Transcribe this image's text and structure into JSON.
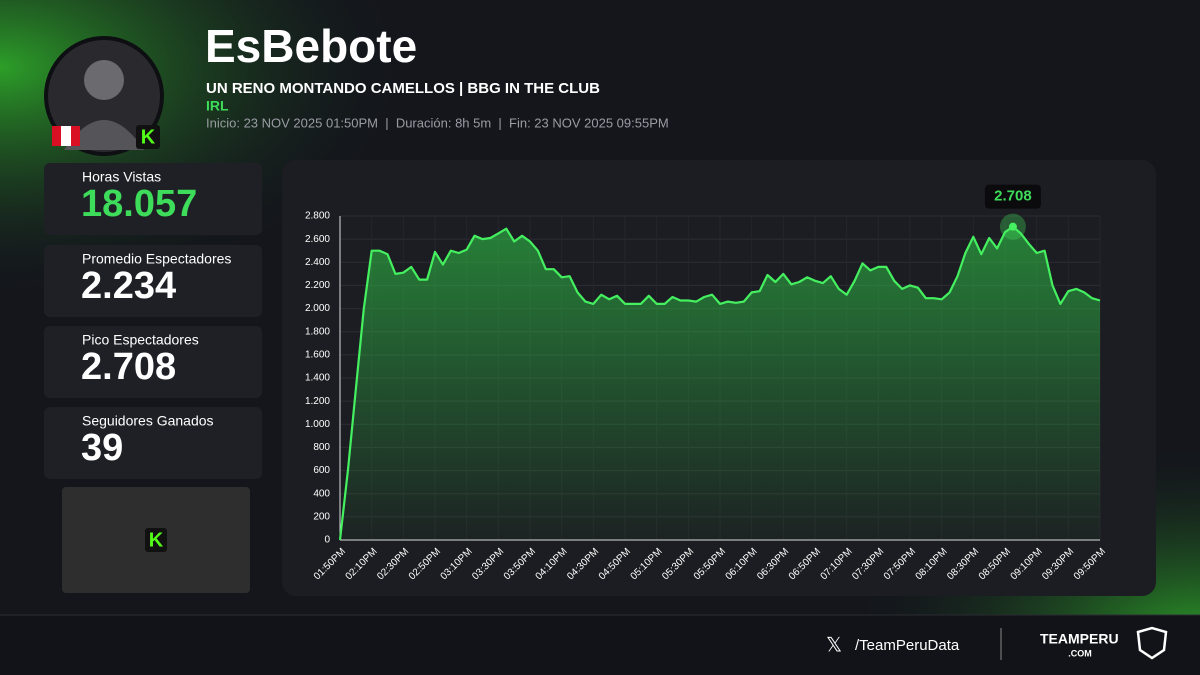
{
  "header": {
    "name": "EsBebote",
    "stream_title": "UN RENO MONTANDO CAMELLOS | BBG IN THE CLUB",
    "category": "IRL",
    "info": "Inicio: 23 NOV 2025 01:50PM  |  Duración: 8h 5m  |  Fin: 23 NOV 2025 09:55PM"
  },
  "stats": [
    {
      "label": "Horas Vistas",
      "value": "18.057"
    },
    {
      "label": "Promedio Espectadores",
      "value": "2.234"
    },
    {
      "label": "Pico Espectadores",
      "value": "2.708"
    },
    {
      "label": "Seguidores Ganados",
      "value": "39"
    }
  ],
  "footer": {
    "handle": "/TeamPeruData",
    "brand": "TEAMPERU",
    "brand_sub": ".COM"
  },
  "chart_data": {
    "type": "line",
    "color": "#45f060",
    "grid": true,
    "categories": [
      "01:50PM",
      null,
      null,
      null,
      "02:10PM",
      null,
      null,
      null,
      "02:30PM",
      null,
      null,
      null,
      "02:50PM",
      null,
      null,
      null,
      "03:10PM",
      null,
      null,
      null,
      "03:30PM",
      null,
      null,
      null,
      "03:50PM",
      null,
      null,
      null,
      "04:10PM",
      null,
      null,
      null,
      "04:30PM",
      null,
      null,
      null,
      "04:50PM",
      null,
      null,
      null,
      "05:10PM",
      null,
      null,
      null,
      "05:30PM",
      null,
      null,
      null,
      "05:50PM",
      null,
      null,
      null,
      "06:10PM",
      null,
      null,
      null,
      "06:30PM",
      null,
      null,
      null,
      "06:50PM",
      null,
      null,
      null,
      "07:10PM",
      null,
      null,
      null,
      "07:30PM",
      null,
      null,
      null,
      "07:50PM",
      null,
      null,
      null,
      "08:10PM",
      null,
      null,
      null,
      "08:30PM",
      null,
      null,
      null,
      "08:50PM",
      null,
      null,
      null,
      "09:10PM",
      null,
      null,
      null,
      "09:30PM",
      null,
      null,
      null,
      "09:50PM"
    ],
    "values": [
      0,
      600,
      1300,
      2000,
      2500,
      2500,
      2470,
      2300,
      2310,
      2360,
      2250,
      2250,
      2490,
      2380,
      2500,
      2480,
      2510,
      2630,
      2600,
      2610,
      2650,
      2690,
      2580,
      2630,
      2580,
      2500,
      2340,
      2340,
      2270,
      2280,
      2140,
      2060,
      2040,
      2120,
      2080,
      2110,
      2040,
      2040,
      2040,
      2110,
      2040,
      2040,
      2100,
      2070,
      2070,
      2060,
      2100,
      2120,
      2040,
      2060,
      2050,
      2060,
      2140,
      2150,
      2290,
      2230,
      2300,
      2210,
      2230,
      2270,
      2240,
      2220,
      2280,
      2170,
      2120,
      2240,
      2390,
      2330,
      2360,
      2360,
      2240,
      2170,
      2200,
      2180,
      2090,
      2090,
      2080,
      2140,
      2280,
      2480,
      2620,
      2470,
      2610,
      2520,
      2660,
      2708,
      2650,
      2560,
      2480,
      2500,
      2200,
      2040,
      2150,
      2170,
      2140,
      2090,
      2070
    ],
    "value_labels": [
      null,
      null,
      null,
      null,
      null,
      null,
      null,
      null,
      null,
      null,
      null,
      null,
      null,
      null,
      null,
      null,
      null,
      null,
      null,
      null,
      null,
      null,
      null,
      null,
      null,
      null,
      null,
      null,
      null,
      null,
      null,
      null,
      null,
      null,
      null,
      null,
      null,
      null,
      null,
      null,
      null,
      null,
      null,
      null,
      null,
      null,
      null,
      null,
      null,
      null,
      null,
      null,
      null,
      null,
      null,
      null,
      null,
      null,
      null,
      null,
      null,
      null,
      null,
      null,
      null,
      null,
      null,
      null,
      null,
      null,
      null,
      null,
      null,
      null,
      null,
      null,
      null,
      null,
      null,
      null,
      null,
      null,
      null,
      null,
      null,
      "2.708",
      null,
      null,
      null,
      null,
      null,
      null,
      null,
      null,
      null,
      null,
      null
    ],
    "ylim": [
      0,
      2800
    ],
    "yticks": [
      0,
      200,
      400,
      600,
      800,
      {
        "value": 1000,
        "label": "1.000"
      },
      {
        "value": 1200,
        "label": "1.200"
      },
      {
        "value": 1400,
        "label": "1.400"
      },
      {
        "value": 1600,
        "label": "1.600"
      },
      {
        "value": 1800,
        "label": "1.800"
      },
      {
        "value": 2000,
        "label": "2.000"
      },
      {
        "value": 2200,
        "label": "2.200"
      },
      {
        "value": 2400,
        "label": "2.400"
      },
      {
        "value": 2600,
        "label": "2.600"
      },
      {
        "value": 2800,
        "label": "2.800"
      }
    ]
  }
}
